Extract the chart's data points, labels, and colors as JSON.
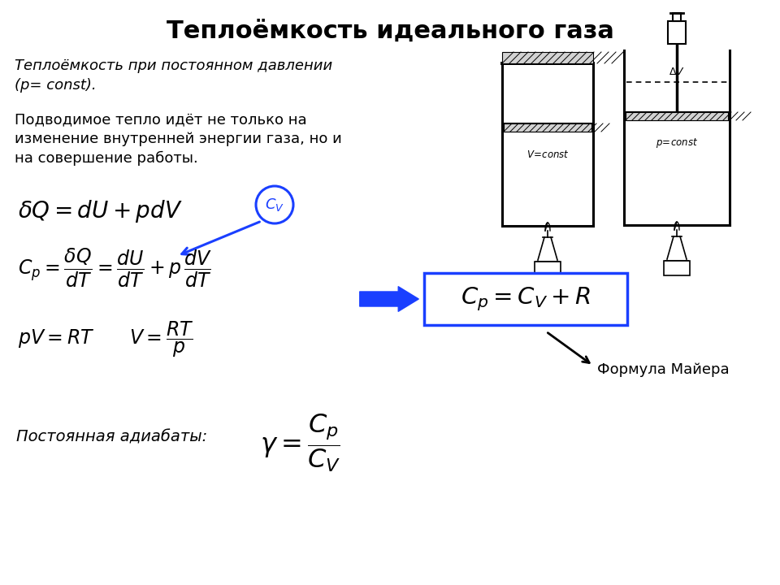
{
  "title": "Теплоёмкость идеального газа",
  "title_fontsize": 22,
  "bg_color": "#ffffff",
  "text_color": "#000000",
  "italic_text1": "Теплоёмкость при постоянном давлении\n(p= const).",
  "normal_text1": "Подводимое тепло идёт не только на\nизменение внутренней энергии газа, но и\nна совершение работы.",
  "mayer_label": "Формула Майера",
  "adiabat_label": "Постоянная адиабаты:",
  "arrow_color": "#1a3fff",
  "circle_color": "#1a3fff",
  "box_color": "#1a3fff",
  "annotation_arrow_color": "#000000",
  "v_const_label": "V=const",
  "p_const_label": "p=const"
}
